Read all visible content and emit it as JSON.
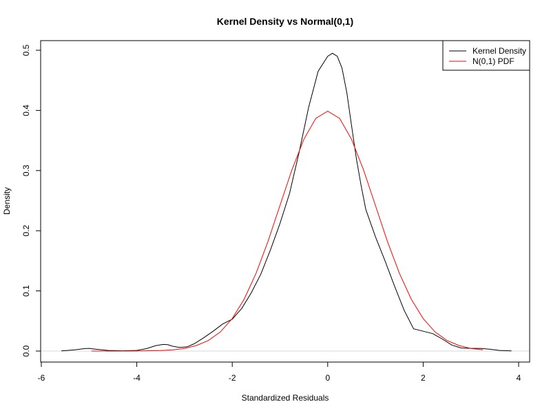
{
  "chart_data": {
    "type": "line",
    "title": "Kernel Density vs Normal(0,1)",
    "xlabel": "Standardized Residuals",
    "ylabel": "Density",
    "xlim": [
      -6,
      4
    ],
    "ylim": [
      0,
      0.5
    ],
    "x_ticks": [
      "-6",
      "-4",
      "-2",
      "0",
      "2",
      "4"
    ],
    "y_ticks": [
      "0.0",
      "0.1",
      "0.2",
      "0.3",
      "0.4",
      "0.5"
    ],
    "grid": false,
    "reference_line": {
      "y": 0,
      "color": "#d9d9d9"
    },
    "legend": {
      "position": "top-right"
    },
    "series": [
      {
        "name": "Kernel Density",
        "color": "#000000",
        "x": [
          -5.58,
          -5.3,
          -5.1,
          -5.0,
          -4.85,
          -4.6,
          -4.3,
          -4.0,
          -3.8,
          -3.6,
          -3.45,
          -3.35,
          -3.25,
          -3.1,
          -2.95,
          -2.8,
          -2.6,
          -2.4,
          -2.2,
          -2.0,
          -1.8,
          -1.6,
          -1.4,
          -1.2,
          -1.0,
          -0.8,
          -0.6,
          -0.4,
          -0.2,
          0.0,
          0.1,
          0.2,
          0.3,
          0.4,
          0.5,
          0.6,
          0.7,
          0.8,
          1.0,
          1.2,
          1.4,
          1.6,
          1.8,
          2.0,
          2.2,
          2.4,
          2.6,
          2.8,
          3.0,
          3.2,
          3.4,
          3.6,
          3.85
        ],
        "y": [
          0.0002,
          0.002,
          0.004,
          0.0045,
          0.003,
          0.001,
          0.0005,
          0.001,
          0.004,
          0.009,
          0.011,
          0.0105,
          0.008,
          0.006,
          0.007,
          0.012,
          0.022,
          0.033,
          0.045,
          0.053,
          0.071,
          0.097,
          0.128,
          0.168,
          0.212,
          0.262,
          0.33,
          0.405,
          0.465,
          0.49,
          0.495,
          0.49,
          0.47,
          0.43,
          0.375,
          0.32,
          0.275,
          0.235,
          0.19,
          0.15,
          0.108,
          0.068,
          0.037,
          0.033,
          0.029,
          0.02,
          0.01,
          0.005,
          0.0045,
          0.0045,
          0.003,
          0.001,
          0.0002
        ]
      },
      {
        "name": "N(0,1) PDF",
        "color": "#ff0000",
        "x": [
          -4.95,
          -4.5,
          -4.0,
          -3.5,
          -3.25,
          -3.0,
          -2.75,
          -2.5,
          -2.25,
          -2.0,
          -1.75,
          -1.5,
          -1.25,
          -1.0,
          -0.75,
          -0.5,
          -0.25,
          0.0,
          0.25,
          0.5,
          0.75,
          1.0,
          1.25,
          1.5,
          1.75,
          2.0,
          2.25,
          2.5,
          2.75,
          3.0,
          3.25
        ],
        "y": [
          0.0,
          0.0,
          0.0001,
          0.0009,
          0.002,
          0.0044,
          0.0091,
          0.0175,
          0.0317,
          0.054,
          0.0863,
          0.1295,
          0.1826,
          0.242,
          0.3011,
          0.3521,
          0.3867,
          0.3989,
          0.3867,
          0.3521,
          0.3011,
          0.242,
          0.1826,
          0.1295,
          0.0863,
          0.054,
          0.0317,
          0.0175,
          0.0091,
          0.0044,
          0.002
        ]
      }
    ]
  }
}
